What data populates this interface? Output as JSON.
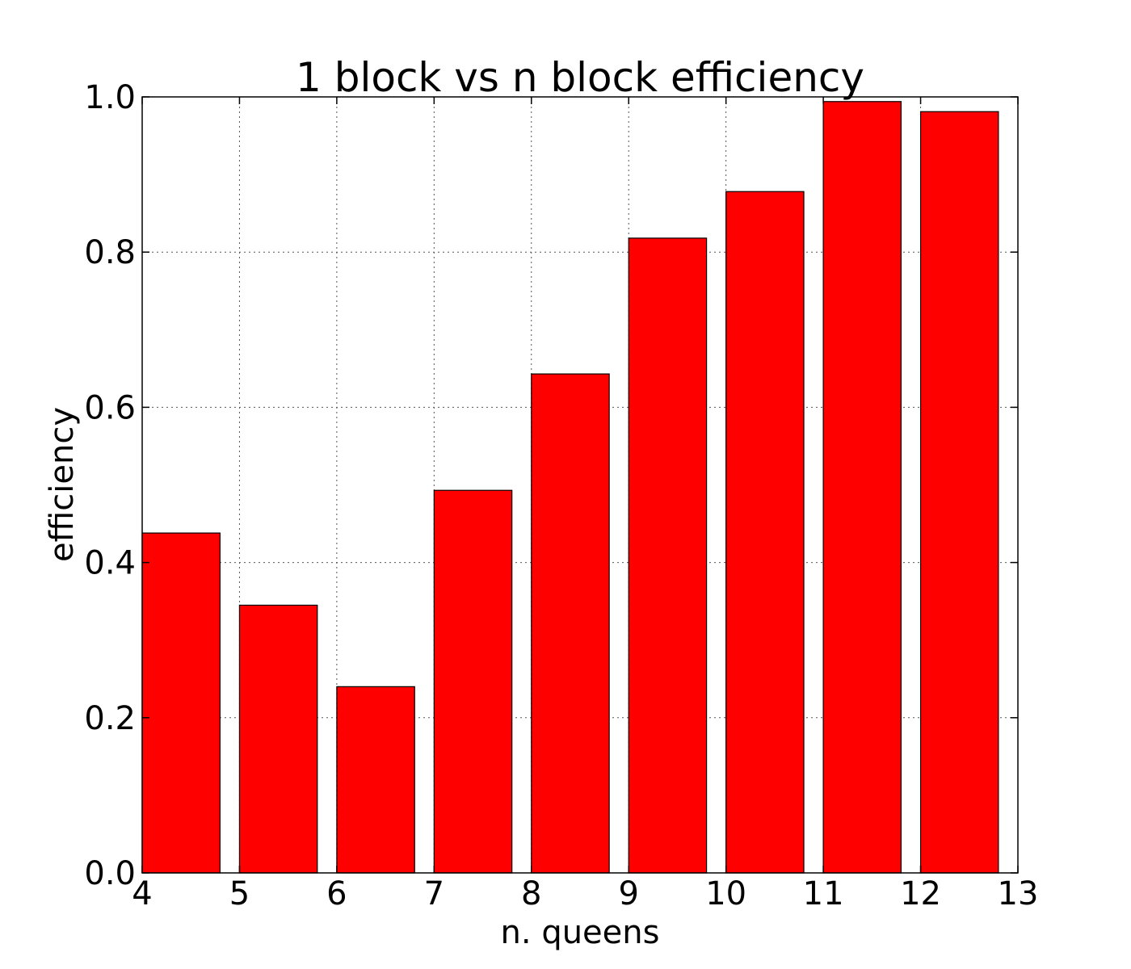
{
  "chart_data": {
    "type": "bar",
    "title": "1 block vs n block efficiency",
    "xlabel": "n. queens",
    "ylabel": "efficiency",
    "categories": [
      "4",
      "5",
      "6",
      "7",
      "8",
      "9",
      "10",
      "11",
      "12"
    ],
    "x": [
      4,
      5,
      6,
      7,
      8,
      9,
      10,
      11,
      12
    ],
    "values": [
      0.438,
      0.345,
      0.24,
      0.493,
      0.643,
      0.818,
      0.878,
      0.994,
      0.981
    ],
    "bar_width": 0.8,
    "xlim": [
      4,
      13
    ],
    "ylim": [
      0.0,
      1.0
    ],
    "xticks": [
      4,
      5,
      6,
      7,
      8,
      9,
      10,
      11,
      12,
      13
    ],
    "xtick_labels": [
      "4",
      "5",
      "6",
      "7",
      "8",
      "9",
      "10",
      "11",
      "12",
      "13"
    ],
    "yticks": [
      0.0,
      0.2,
      0.4,
      0.6,
      0.8,
      1.0
    ],
    "ytick_labels": [
      "0.0",
      "0.2",
      "0.4",
      "0.6",
      "0.8",
      "1.0"
    ],
    "grid": true,
    "bar_color": "#ff0000"
  }
}
